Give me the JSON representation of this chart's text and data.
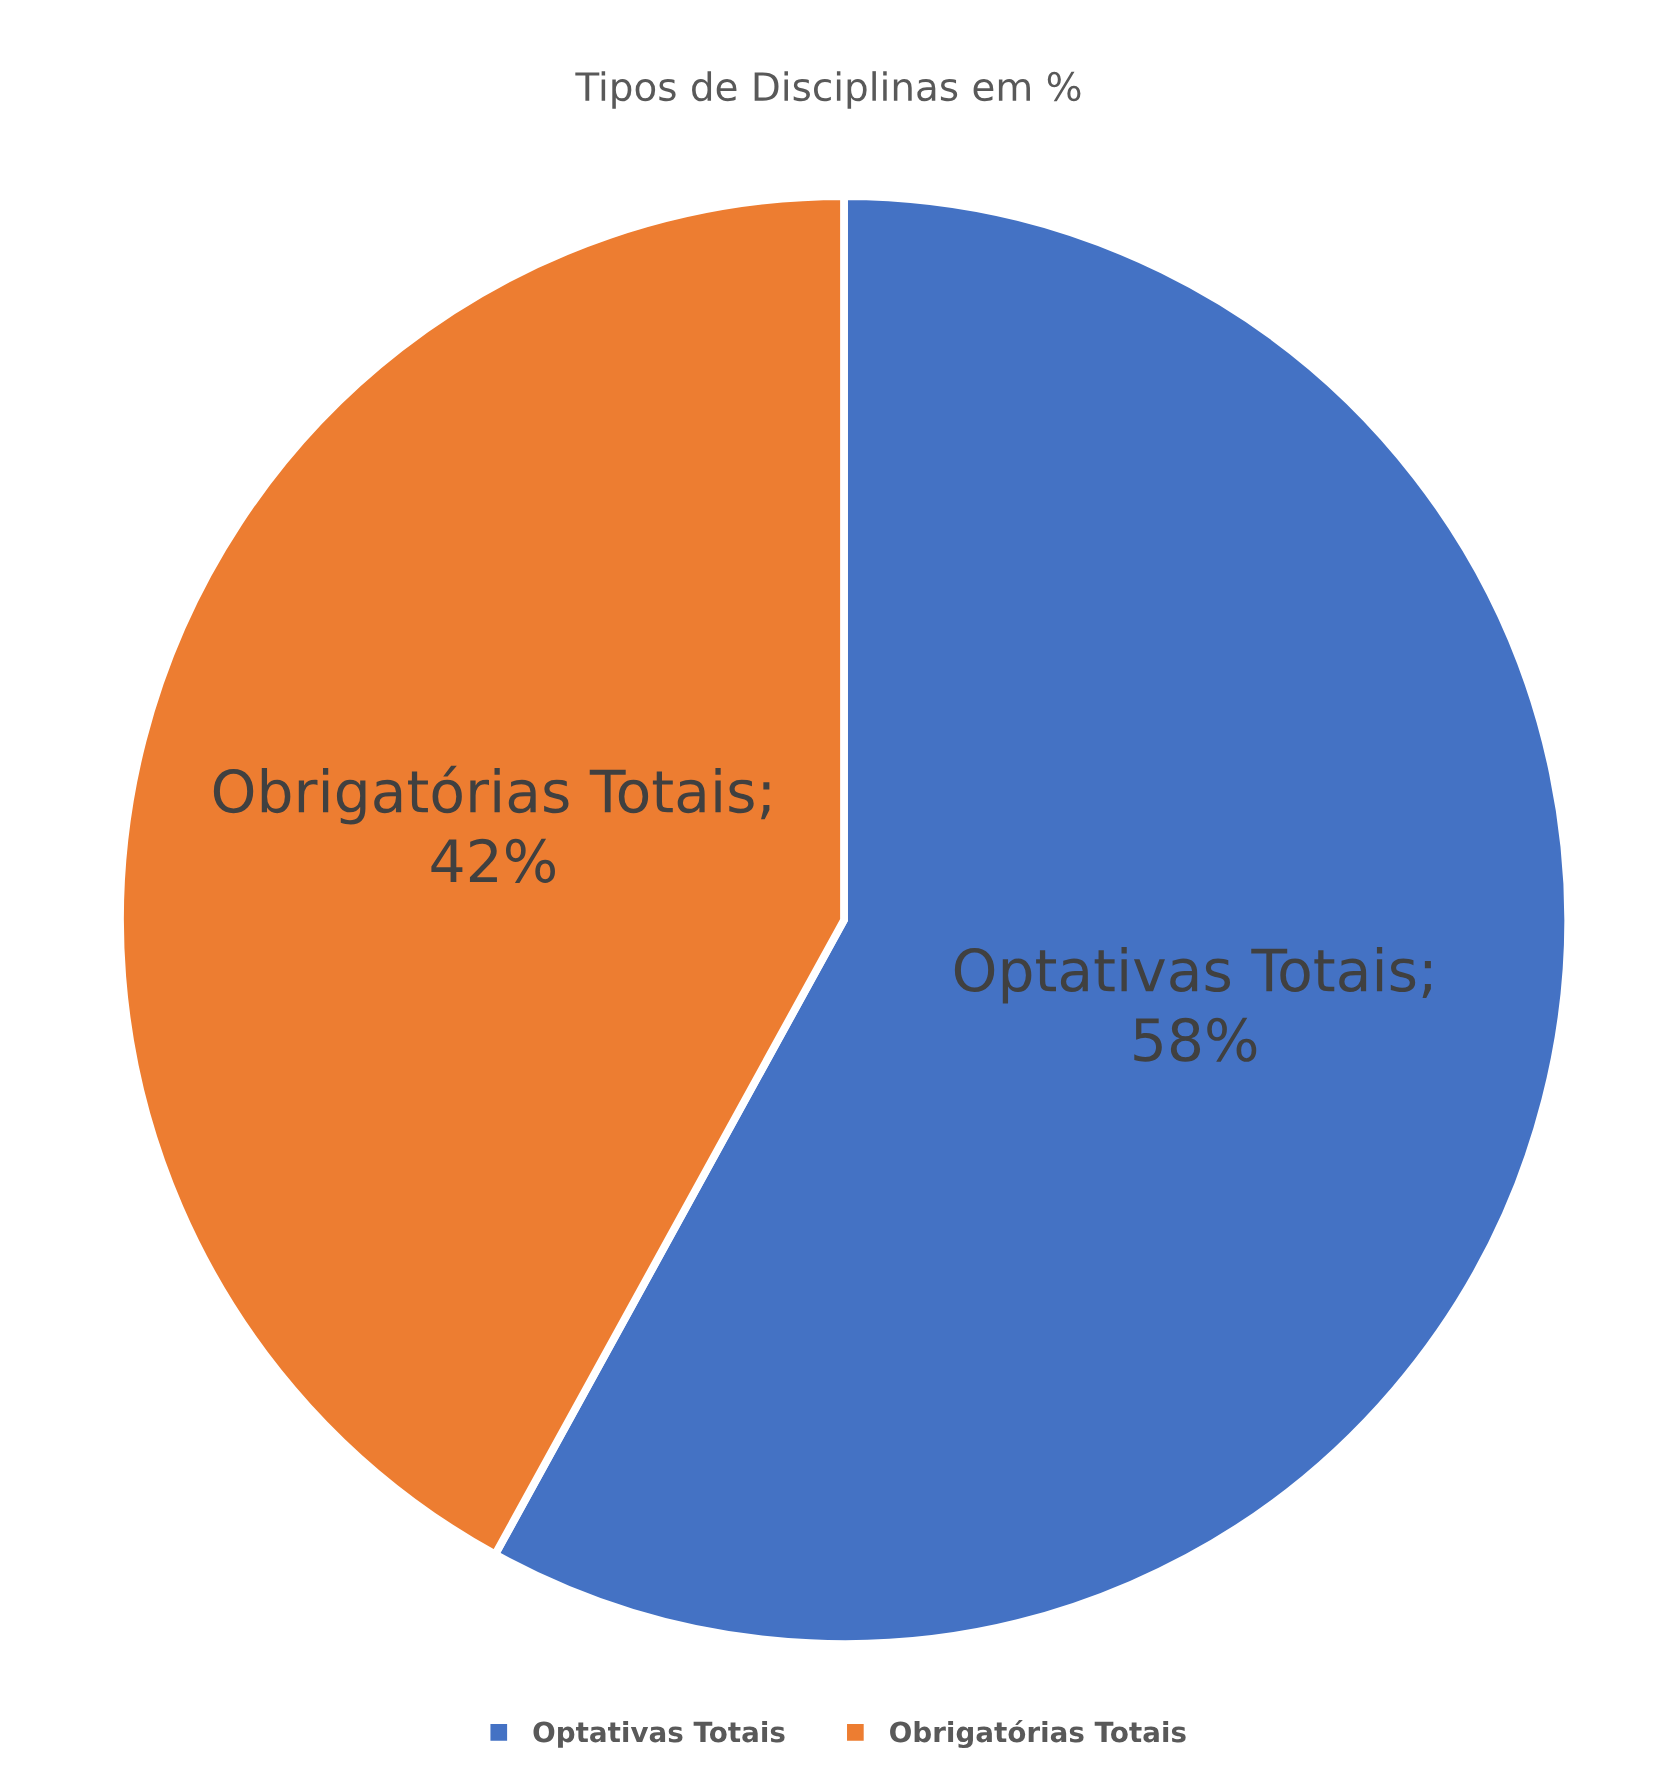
{
  "chart_data": {
    "type": "pie",
    "title": "Tipos de Disciplinas em %",
    "categories": [
      "Optativas Totais",
      "Obrigatórias Totais"
    ],
    "values": [
      58,
      42
    ],
    "colors": [
      "#4472c4",
      "#ed7d31"
    ],
    "value_labels": [
      "Optativas Totais;\n58%",
      "Obrigatórias Totais;\n42%"
    ],
    "legend": "bottom"
  }
}
